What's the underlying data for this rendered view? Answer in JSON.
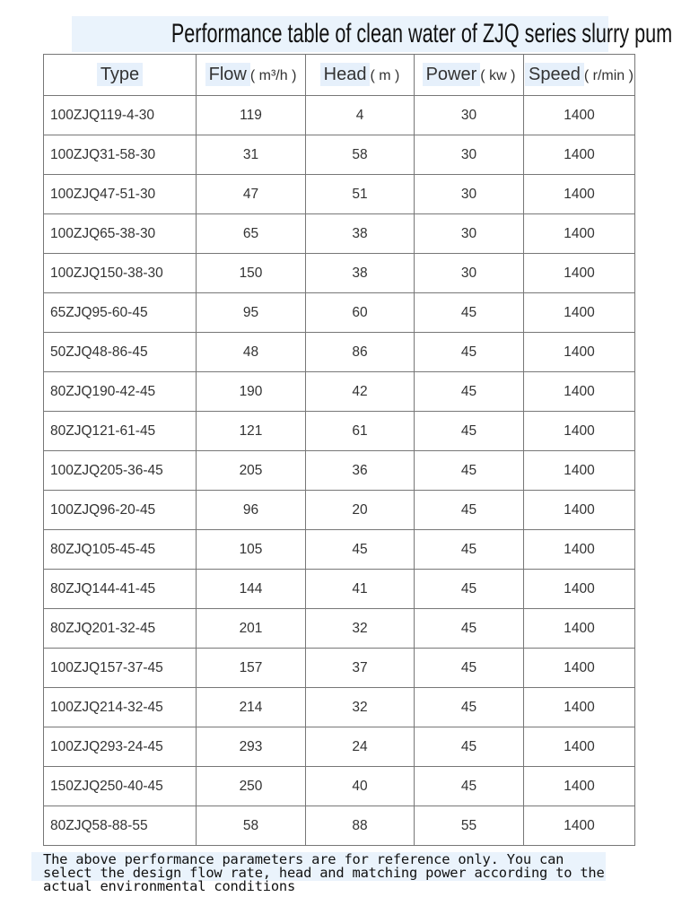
{
  "title": "Performance table of clean water of ZJQ series slurry pump",
  "table": {
    "headers": [
      {
        "label": "Type",
        "unit": ""
      },
      {
        "label": "Flow",
        "unit": "( m³/h )"
      },
      {
        "label": "Head",
        "unit": "( m )"
      },
      {
        "label": "Power",
        "unit": "( kw )"
      },
      {
        "label": "Speed",
        "unit": "( r/min )"
      }
    ],
    "rows": [
      [
        "100ZJQ119-4-30",
        "119",
        "4",
        "30",
        "1400"
      ],
      [
        "100ZJQ31-58-30",
        "31",
        "58",
        "30",
        "1400"
      ],
      [
        "100ZJQ47-51-30",
        "47",
        "51",
        "30",
        "1400"
      ],
      [
        "100ZJQ65-38-30",
        "65",
        "38",
        "30",
        "1400"
      ],
      [
        "100ZJQ150-38-30",
        "150",
        "38",
        "30",
        "1400"
      ],
      [
        "65ZJQ95-60-45",
        "95",
        "60",
        "45",
        "1400"
      ],
      [
        "50ZJQ48-86-45",
        "48",
        "86",
        "45",
        "1400"
      ],
      [
        "80ZJQ190-42-45",
        "190",
        "42",
        "45",
        "1400"
      ],
      [
        "80ZJQ121-61-45",
        "121",
        "61",
        "45",
        "1400"
      ],
      [
        "100ZJQ205-36-45",
        "205",
        "36",
        "45",
        "1400"
      ],
      [
        "100ZJQ96-20-45",
        "96",
        "20",
        "45",
        "1400"
      ],
      [
        "80ZJQ105-45-45",
        "105",
        "45",
        "45",
        "1400"
      ],
      [
        "80ZJQ144-41-45",
        "144",
        "41",
        "45",
        "1400"
      ],
      [
        "80ZJQ201-32-45",
        "201",
        "32",
        "45",
        "1400"
      ],
      [
        "100ZJQ157-37-45",
        "157",
        "37",
        "45",
        "1400"
      ],
      [
        "100ZJQ214-32-45",
        "214",
        "32",
        "45",
        "1400"
      ],
      [
        "100ZJQ293-24-45",
        "293",
        "24",
        "45",
        "1400"
      ],
      [
        "150ZJQ250-40-45",
        "250",
        "40",
        "45",
        "1400"
      ],
      [
        "80ZJQ58-88-55",
        "58",
        "88",
        "55",
        "1400"
      ]
    ]
  },
  "note": [
    "The above performance parameters are for reference only. You can",
    "select the design flow rate, head and matching power according to the",
    "actual environmental conditions"
  ]
}
